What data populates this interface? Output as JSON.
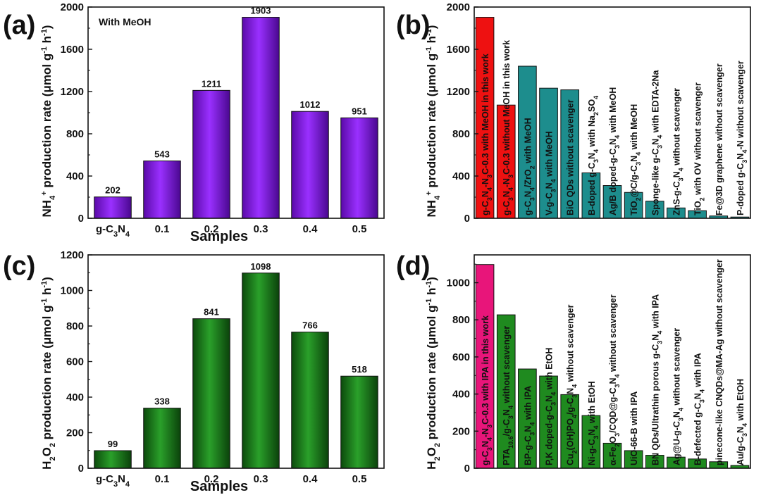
{
  "panels": [
    {
      "letter": "(a)",
      "ylabel": "NH4+ production rate (μmol g-1 h-1)",
      "xlabel": "Samples",
      "annotation": "With MeOH"
    },
    {
      "letter": "(b)",
      "ylabel": "NH4+ production rate (μmol g-1 h-1)"
    },
    {
      "letter": "(c)",
      "ylabel": "H2O2 production rate (μmol g-1 h-1)",
      "xlabel": "Samples"
    },
    {
      "letter": "(d)",
      "ylabel": "H2O2 production rate (μmol g-1 h-1)"
    }
  ],
  "colors": {
    "violet": "#8c1ff2",
    "green": "#1f8a1f",
    "red": "#ee1111",
    "teal": "#1d8d8d",
    "magenta": "#e8157a"
  },
  "chart_data": [
    {
      "type": "bar",
      "categories": [
        "g-C3N4",
        "0.1",
        "0.2",
        "0.3",
        "0.4",
        "0.5"
      ],
      "values": [
        202,
        543,
        1211,
        1903,
        1012,
        951
      ],
      "data_labels": [
        "202",
        "543",
        "1211",
        "1903",
        "1012",
        "951"
      ],
      "ylim": [
        0,
        2000
      ],
      "yticks": [
        0,
        400,
        800,
        1200,
        1600,
        2000
      ],
      "ylabel": "NH4+ production rate (μmol g-1 h-1)",
      "xlabel": "Samples",
      "color": "#8c1ff2"
    },
    {
      "type": "bar",
      "categories": [
        "g-C3N4-N3C-0.3 with MeOH in this work",
        "g-C3N4-N3C-0.3 without MeOH in this work",
        "g-C3N4/ZrO2 with MeOH",
        "V-g-C3N4 with MeOH",
        "BiO QDs without scavenger",
        "B-doped g-C3N4 with Na2SO4",
        "Ag/B doped-g-C3N4 with MeOH",
        "TiO2@C/g-C3N4 with MeOH",
        "Sponge-like g-C3N4 with EDTA-2Na",
        "ZnS-g-C3N4 without scavenger",
        "TiO2 with OV without scavenger",
        "Fe@3D graphene without scavenger",
        "P-doped g-C3N4-N without scavenger"
      ],
      "values": [
        1903,
        1072,
        1440,
        1232,
        1216,
        430,
        310,
        245,
        162,
        98,
        72,
        22,
        12
      ],
      "bar_colors": [
        "red",
        "red",
        "teal",
        "teal",
        "teal",
        "teal",
        "teal",
        "teal",
        "teal",
        "teal",
        "teal",
        "teal",
        "teal"
      ],
      "ylim": [
        0,
        2000
      ],
      "yticks": [
        0,
        400,
        800,
        1200,
        1600,
        2000
      ],
      "ylabel": "NH4+ production rate (μmol g-1 h-1)"
    },
    {
      "type": "bar",
      "categories": [
        "g-C3N4",
        "0.1",
        "0.2",
        "0.3",
        "0.4",
        "0.5"
      ],
      "values": [
        99,
        338,
        841,
        1098,
        766,
        518
      ],
      "data_labels": [
        "99",
        "338",
        "841",
        "1098",
        "766",
        "518"
      ],
      "ylim": [
        0,
        1200
      ],
      "yticks": [
        0,
        200,
        400,
        600,
        800,
        1000,
        1200
      ],
      "ylabel": "H2O2 production rate (μmol g-1 h-1)",
      "xlabel": "Samples",
      "color": "#1f8a1f"
    },
    {
      "type": "bar",
      "categories": [
        "g-C3N4-N3C-0.3 with IPA in this work",
        "PTA10.6/g-C3N4 without scavenger",
        "BP-g-C3N4 with IPA",
        "P,K doped-g-C3N4 with EtOH",
        "Cu2(OH)PO4/g-C3N4 without scavenger",
        "Ni-g-C3N4 with EtOH",
        "α-Fe2O3/CQD@g-C3N4 without scavenger",
        "UiO-66-B with IPA",
        "BN QDs/Ultrathin porous g-C3N4 with IPA",
        "Ag@U-g-C3N4 without scavenger",
        "B-defected g-C3N4 with IPA",
        "pinecone-like CNQDs@MA-Ag without scavenger",
        "Au/g-C3N4 with EtOH"
      ],
      "values": [
        1098,
        827,
        535,
        497,
        397,
        284,
        135,
        95,
        70,
        60,
        50,
        35,
        15
      ],
      "bar_colors": [
        "magenta",
        "green",
        "green",
        "green",
        "green",
        "green",
        "green",
        "green",
        "green",
        "green",
        "green",
        "green",
        "green"
      ],
      "ylim": [
        0,
        1150
      ],
      "yticks": [
        0,
        200,
        400,
        600,
        800,
        1000
      ],
      "ylabel": "H2O2 production rate (μmol g-1 h-1)"
    }
  ]
}
